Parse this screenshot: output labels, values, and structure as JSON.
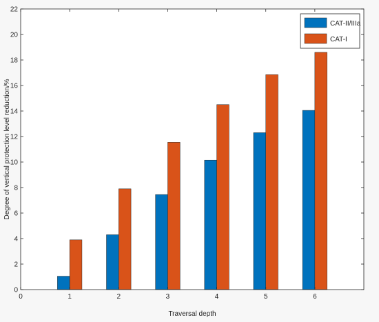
{
  "chart_data": {
    "type": "bar",
    "title": "",
    "xlabel": "Traversal depth",
    "ylabel": "Degree of vertical protection level reduction/%",
    "xlim": [
      0,
      7
    ],
    "ylim": [
      0,
      22
    ],
    "xticks": [
      "0",
      "1",
      "2",
      "3",
      "4",
      "5",
      "6"
    ],
    "yticks": [
      "0",
      "2",
      "4",
      "6",
      "8",
      "10",
      "12",
      "14",
      "16",
      "18",
      "20",
      "22"
    ],
    "categories": [
      "1",
      "2",
      "3",
      "4",
      "5",
      "6"
    ],
    "series": [
      {
        "name": "CAT-II/IIIa",
        "color": "#0072BD",
        "values": [
          1.05,
          4.3,
          7.45,
          10.15,
          12.3,
          14.05
        ]
      },
      {
        "name": "CAT-I",
        "color": "#D95319",
        "values": [
          3.9,
          7.9,
          11.55,
          14.5,
          16.85,
          18.6
        ]
      }
    ],
    "legend_position": "top-right",
    "grid": false
  }
}
